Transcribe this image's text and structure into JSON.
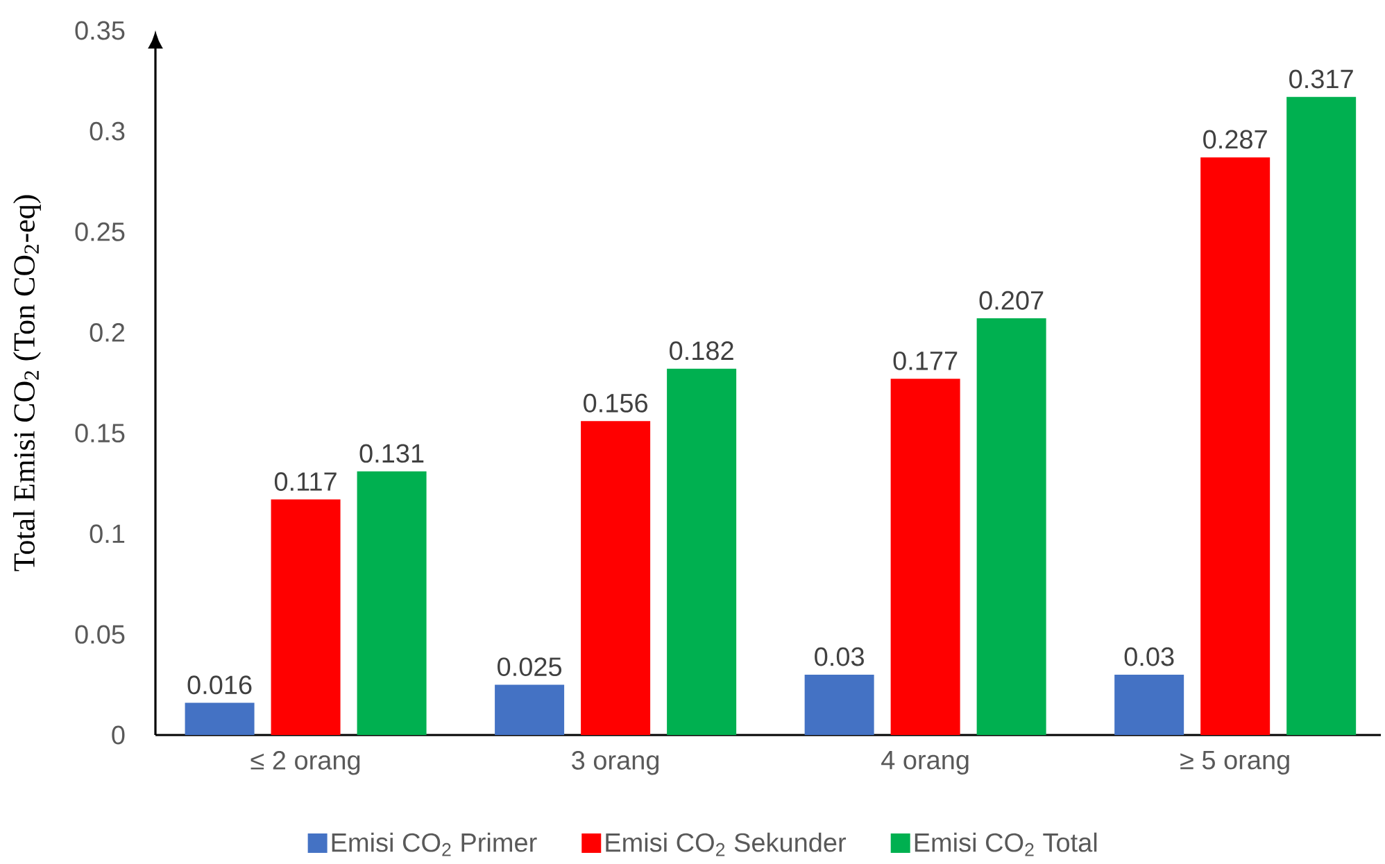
{
  "chart_data": {
    "type": "bar",
    "ylabel": "Total Emisi CO$_{2}$ (Ton CO$_{2}$-eq)",
    "categories": [
      "≤ 2 orang",
      "3 orang",
      "4 orang",
      "≥ 5 orang"
    ],
    "series": [
      {
        "name": "Emisi CO$_{2}$ Primer",
        "color": "#4472c4",
        "values": [
          0.016,
          0.025,
          0.03,
          0.03
        ]
      },
      {
        "name": "Emisi CO$_{2}$ Sekunder",
        "color": "#ff0000",
        "values": [
          0.117,
          0.156,
          0.177,
          0.287
        ]
      },
      {
        "name": "Emisi CO$_{2}$ Total",
        "color": "#00b050",
        "values": [
          0.131,
          0.182,
          0.207,
          0.317
        ]
      }
    ],
    "ylim": [
      0,
      0.35
    ],
    "yticks": [
      0,
      0.05,
      0.1,
      0.15,
      0.2,
      0.25,
      0.3,
      0.35
    ],
    "data_labels": true,
    "legend": "bottom"
  }
}
